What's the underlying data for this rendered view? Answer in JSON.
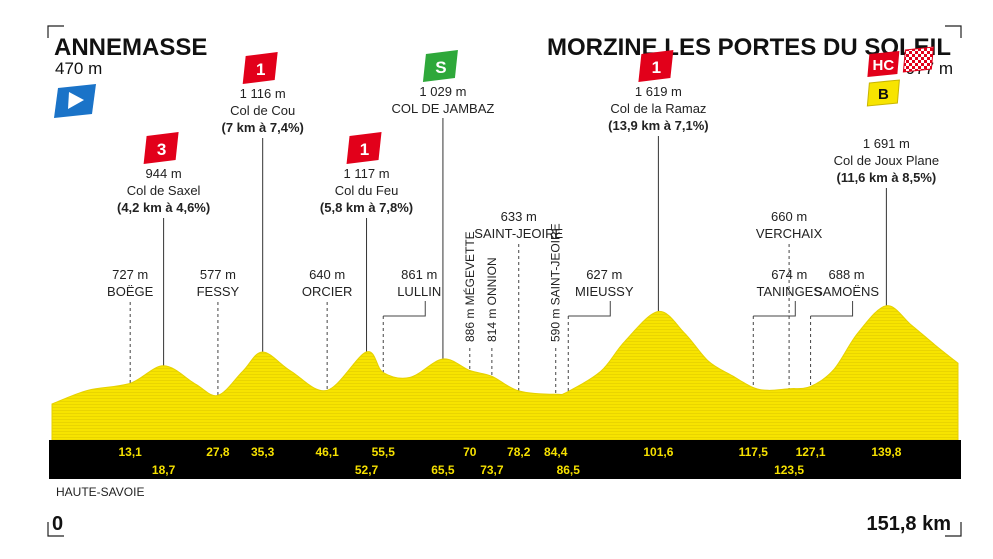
{
  "start": {
    "name": "ANNEMASSE",
    "altitude": "470 m",
    "start_icon": "start-flag-icon"
  },
  "finish": {
    "name": "MORZINE LES PORTES DU SOLEIL",
    "altitude": "977 m"
  },
  "region": "HAUTE-SAVOIE",
  "distance_start": "0",
  "distance_total": "151,8 km",
  "colors": {
    "profile": "#f7e400",
    "profile_edge": "#e6d100",
    "bar": "#000000",
    "km_text": "#f5e000",
    "climb": "#e2001a",
    "sprint": "#2ea83a",
    "bonus": "#f7e400",
    "start_flag": "#1a73c8"
  },
  "chart_data": {
    "type": "area",
    "xlabel": "",
    "ylabel": "",
    "xlim": [
      0,
      151.8
    ],
    "ylim": [
      0,
      2200
    ],
    "series": [
      {
        "x": [
          0,
          6,
          13.1,
          18.7,
          24,
          27.8,
          32,
          35.3,
          40,
          46.1,
          52.7,
          55.5,
          60,
          65.5,
          70,
          73.7,
          78.2,
          84.4,
          86.5,
          92,
          96,
          101.6,
          106,
          110,
          114,
          117.5,
          120,
          123.5,
          127.1,
          131,
          135,
          139.8,
          144,
          148,
          151.8
        ],
        "y": [
          470,
          640,
          727,
          944,
          720,
          577,
          880,
          1116,
          880,
          640,
          1117,
          861,
          800,
          1029,
          886,
          814,
          633,
          590,
          627,
          880,
          1250,
          1619,
          1350,
          1000,
          820,
          674,
          640,
          660,
          688,
          900,
          1350,
          1691,
          1450,
          1200,
          977
        ]
      }
    ],
    "km_markers": [
      {
        "km": 13.1,
        "label": "13,1",
        "row": 1
      },
      {
        "km": 18.7,
        "label": "18,7",
        "row": 2
      },
      {
        "km": 27.8,
        "label": "27,8",
        "row": 1
      },
      {
        "km": 35.3,
        "label": "35,3",
        "row": 1
      },
      {
        "km": 46.1,
        "label": "46,1",
        "row": 1
      },
      {
        "km": 52.7,
        "label": "52,7",
        "row": 2
      },
      {
        "km": 55.5,
        "label": "55,5",
        "row": 1
      },
      {
        "km": 65.5,
        "label": "65,5",
        "row": 2
      },
      {
        "km": 70,
        "label": "70",
        "row": 1
      },
      {
        "km": 73.7,
        "label": "73,7",
        "row": 2
      },
      {
        "km": 78.2,
        "label": "78,2",
        "row": 1
      },
      {
        "km": 84.4,
        "label": "84,4",
        "row": 1
      },
      {
        "km": 86.5,
        "label": "86,5",
        "row": 2
      },
      {
        "km": 101.6,
        "label": "101,6",
        "row": 1
      },
      {
        "km": 117.5,
        "label": "117,5",
        "row": 1
      },
      {
        "km": 123.5,
        "label": "123,5",
        "row": 2
      },
      {
        "km": 127.1,
        "label": "127,1",
        "row": 1
      },
      {
        "km": 139.8,
        "label": "139,8",
        "row": 1
      }
    ],
    "towns": [
      {
        "km": 13.1,
        "alt": "727 m",
        "name": "BOËGE",
        "orient": "h"
      },
      {
        "km": 27.8,
        "alt": "577 m",
        "name": "FESSY",
        "orient": "h"
      },
      {
        "km": 46.1,
        "alt": "640 m",
        "name": "ORCIER",
        "orient": "h"
      },
      {
        "km": 55.5,
        "alt": "861 m",
        "name": "LULLIN",
        "orient": "h",
        "offset": true
      },
      {
        "km": 70,
        "alt": "886 m",
        "name": "MÉGEVETTE",
        "orient": "v"
      },
      {
        "km": 73.7,
        "alt": "814 m",
        "name": "ONNION",
        "orient": "v"
      },
      {
        "km": 78.2,
        "alt": "633 m",
        "name": "SAINT-JEOIRE",
        "orient": "h",
        "high": true
      },
      {
        "km": 84.4,
        "alt": "590 m",
        "name": "SAINT-JEOIRE",
        "orient": "v"
      },
      {
        "km": 86.5,
        "alt": "627 m",
        "name": "MIEUSSY",
        "orient": "h",
        "offset": true
      },
      {
        "km": 117.5,
        "alt": "674 m",
        "name": "TANINGES",
        "orient": "h",
        "offset": true
      },
      {
        "km": 123.5,
        "alt": "660 m",
        "name": "VERCHAIX",
        "orient": "h",
        "high": true
      },
      {
        "km": 127.1,
        "alt": "688 m",
        "name": "SAMOËNS",
        "orient": "h",
        "offset": true
      }
    ],
    "climbs": [
      {
        "km": 18.7,
        "badge": "3",
        "alt": "944 m",
        "name": "Col de Saxel",
        "detail": "(4,2 km à 4,6%)"
      },
      {
        "km": 35.3,
        "badge": "1",
        "alt": "1 116 m",
        "name": "Col de Cou",
        "detail": "(7 km à 7,4%)"
      },
      {
        "km": 52.7,
        "badge": "1",
        "alt": "1 117 m",
        "name": "Col du Feu",
        "detail": "(5,8 km à 7,8%)"
      },
      {
        "km": 65.5,
        "badge": "S",
        "alt": "1 029 m",
        "name": "COL DE JAMBAZ",
        "detail": "",
        "type": "sprint"
      },
      {
        "km": 101.6,
        "badge": "1",
        "alt": "1 619 m",
        "name": "Col de la Ramaz",
        "detail": "(13,9 km à 7,1%)"
      },
      {
        "km": 139.8,
        "badge": "HC",
        "bonus": "B",
        "alt": "1 691 m",
        "name": "Col de Joux Plane",
        "detail": "(11,6 km à 8,5%)",
        "type": "hc"
      }
    ]
  }
}
